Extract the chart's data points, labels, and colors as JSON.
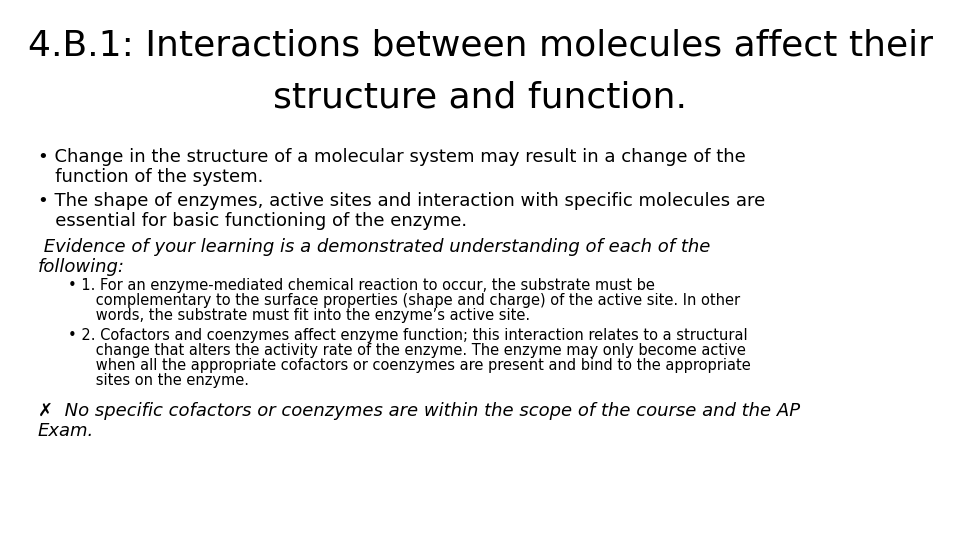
{
  "background_color": "#ffffff",
  "title_line1": "4.B.1: Interactions between molecules affect their",
  "title_line2": "structure and function.",
  "title_fontsize": 26,
  "title_font": "DejaVu Sans",
  "body_fontsize": 13.0,
  "body_font": "DejaVu Sans",
  "small_fontsize": 10.5,
  "bullet1_line1": "• Change in the structure of a molecular system may result in a change of the",
  "bullet1_line2": "   function of the system.",
  "bullet2_line1": "• The shape of enzymes, active sites and interaction with specific molecules are",
  "bullet2_line2": "   essential for basic functioning of the enzyme.",
  "evidence_line1": " Evidence of your learning is a demonstrated understanding of each of the",
  "evidence_line2": "following:",
  "sub1_line1": "• 1. For an enzyme-mediated chemical reaction to occur, the substrate must be",
  "sub1_line2": "      complementary to the surface properties (shape and charge) of the active site. In other",
  "sub1_line3": "      words, the substrate must fit into the enzyme’s active site.",
  "sub2_line1": "• 2. Cofactors and coenzymes affect enzyme function; this interaction relates to a structural",
  "sub2_line2": "      change that alters the activity rate of the enzyme. The enzyme may only become active",
  "sub2_line3": "      when all the appropriate cofactors or coenzymes are present and bind to the appropriate",
  "sub2_line4": "      sites on the enzyme.",
  "excl_line1": "✗  No specific cofactors or coenzymes are within the scope of the course and the AP",
  "excl_line2": "Exam.",
  "text_color": "#000000"
}
